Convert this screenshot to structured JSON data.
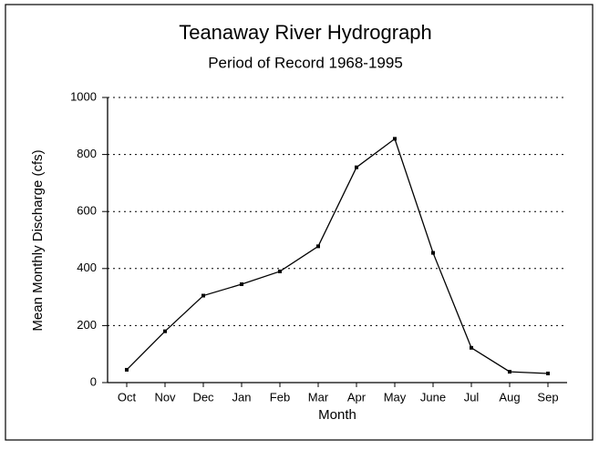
{
  "chart_data": {
    "type": "line",
    "title": "Teanaway River Hydrograph",
    "subtitle": "Period of Record 1968-1995",
    "x_label": "Month",
    "y_label": "Mean Monthly Discharge (cfs)",
    "categories": [
      "Oct",
      "Nov",
      "Dec",
      "Jan",
      "Feb",
      "Mar",
      "Apr",
      "May",
      "June",
      "Jul",
      "Aug",
      "Sep"
    ],
    "values": [
      45,
      180,
      305,
      345,
      390,
      478,
      755,
      855,
      455,
      122,
      38,
      32
    ],
    "color": "#000000",
    "ylim": [
      0,
      1000
    ],
    "yticks": [
      0,
      200,
      400,
      600,
      800,
      1000
    ],
    "grid": true
  }
}
